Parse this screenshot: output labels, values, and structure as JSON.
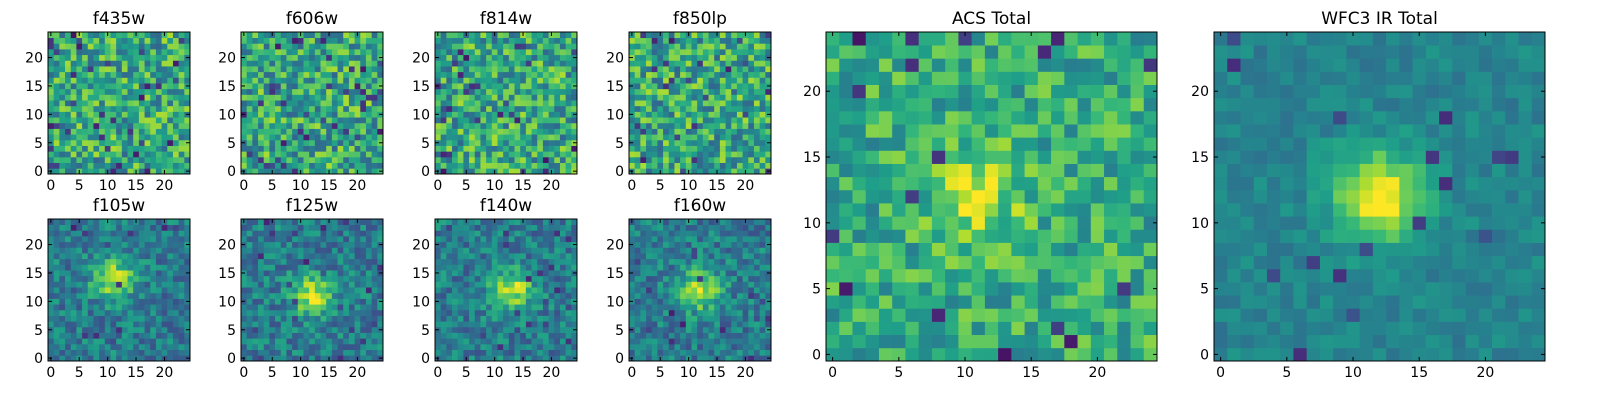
{
  "figure": {
    "background": "#ffffff"
  },
  "chart_data": [
    {
      "type": "heatmap",
      "title": "f435w",
      "grid": false,
      "xlim": [
        -0.5,
        24.5
      ],
      "ylim": [
        -0.5,
        24.5
      ],
      "xticks": [
        "0",
        "5",
        "10",
        "15",
        "20"
      ],
      "yticks": [
        "0",
        "5",
        "10",
        "15",
        "20"
      ],
      "colormap": "viridis",
      "shape": [
        25,
        25
      ],
      "seed": 11,
      "style": "noise"
    },
    {
      "type": "heatmap",
      "title": "f606w",
      "grid": false,
      "xlim": [
        -0.5,
        24.5
      ],
      "ylim": [
        -0.5,
        24.5
      ],
      "xticks": [
        "0",
        "5",
        "10",
        "15",
        "20"
      ],
      "yticks": [
        "0",
        "5",
        "10",
        "15",
        "20"
      ],
      "colormap": "viridis",
      "shape": [
        25,
        25
      ],
      "seed": 23,
      "style": "noise"
    },
    {
      "type": "heatmap",
      "title": "f814w",
      "grid": false,
      "xlim": [
        -0.5,
        24.5
      ],
      "ylim": [
        -0.5,
        24.5
      ],
      "xticks": [
        "0",
        "5",
        "10",
        "15",
        "20"
      ],
      "yticks": [
        "0",
        "5",
        "10",
        "15",
        "20"
      ],
      "colormap": "viridis",
      "shape": [
        25,
        25
      ],
      "seed": 37,
      "style": "noise"
    },
    {
      "type": "heatmap",
      "title": "f850lp",
      "grid": false,
      "xlim": [
        -0.5,
        24.5
      ],
      "ylim": [
        -0.5,
        24.5
      ],
      "xticks": [
        "0",
        "5",
        "10",
        "15",
        "20"
      ],
      "yticks": [
        "0",
        "5",
        "10",
        "15",
        "20"
      ],
      "colormap": "viridis",
      "shape": [
        25,
        25
      ],
      "seed": 41,
      "style": "noise"
    },
    {
      "type": "heatmap",
      "title": "f105w",
      "grid": false,
      "xlim": [
        -0.5,
        24.5
      ],
      "ylim": [
        -0.5,
        24.5
      ],
      "xticks": [
        "0",
        "5",
        "10",
        "15",
        "20"
      ],
      "yticks": [
        "0",
        "5",
        "10",
        "15",
        "20"
      ],
      "colormap": "viridis",
      "shape": [
        25,
        25
      ],
      "seed": 53,
      "style": "source",
      "peak_center": [
        11,
        14
      ]
    },
    {
      "type": "heatmap",
      "title": "f125w",
      "grid": false,
      "xlim": [
        -0.5,
        24.5
      ],
      "ylim": [
        -0.5,
        24.5
      ],
      "xticks": [
        "0",
        "5",
        "10",
        "15",
        "20"
      ],
      "yticks": [
        "0",
        "5",
        "10",
        "15",
        "20"
      ],
      "colormap": "viridis",
      "shape": [
        25,
        25
      ],
      "seed": 67,
      "style": "source",
      "peak_center": [
        12,
        11
      ]
    },
    {
      "type": "heatmap",
      "title": "f140w",
      "grid": false,
      "xlim": [
        -0.5,
        24.5
      ],
      "ylim": [
        -0.5,
        24.5
      ],
      "xticks": [
        "0",
        "5",
        "10",
        "15",
        "20"
      ],
      "yticks": [
        "0",
        "5",
        "10",
        "15",
        "20"
      ],
      "colormap": "viridis",
      "shape": [
        25,
        25
      ],
      "seed": 71,
      "style": "source",
      "peak_center": [
        13,
        12
      ]
    },
    {
      "type": "heatmap",
      "title": "f160w",
      "grid": false,
      "xlim": [
        -0.5,
        24.5
      ],
      "ylim": [
        -0.5,
        24.5
      ],
      "xticks": [
        "0",
        "5",
        "10",
        "15",
        "20"
      ],
      "yticks": [
        "0",
        "5",
        "10",
        "15",
        "20"
      ],
      "colormap": "viridis",
      "shape": [
        25,
        25
      ],
      "seed": 83,
      "style": "source",
      "peak_center": [
        12,
        12
      ]
    },
    {
      "type": "heatmap",
      "title": "ACS Total",
      "grid": false,
      "xlim": [
        -0.5,
        24.5
      ],
      "ylim": [
        -0.5,
        24.5
      ],
      "xticks": [
        "0",
        "5",
        "10",
        "15",
        "20"
      ],
      "yticks": [
        "0",
        "5",
        "10",
        "15",
        "20"
      ],
      "colormap": "viridis",
      "shape": [
        25,
        25
      ],
      "seed": 97,
      "style": "acs",
      "peak_center": [
        11,
        12
      ]
    },
    {
      "type": "heatmap",
      "title": "WFC3 IR Total",
      "grid": false,
      "xlim": [
        -0.5,
        24.5
      ],
      "ylim": [
        -0.5,
        24.5
      ],
      "xticks": [
        "0",
        "5",
        "10",
        "15",
        "20"
      ],
      "yticks": [
        "0",
        "5",
        "10",
        "15",
        "20"
      ],
      "colormap": "viridis",
      "shape": [
        25,
        25
      ],
      "seed": 101,
      "style": "ir",
      "peak_center": [
        12,
        12
      ]
    }
  ]
}
